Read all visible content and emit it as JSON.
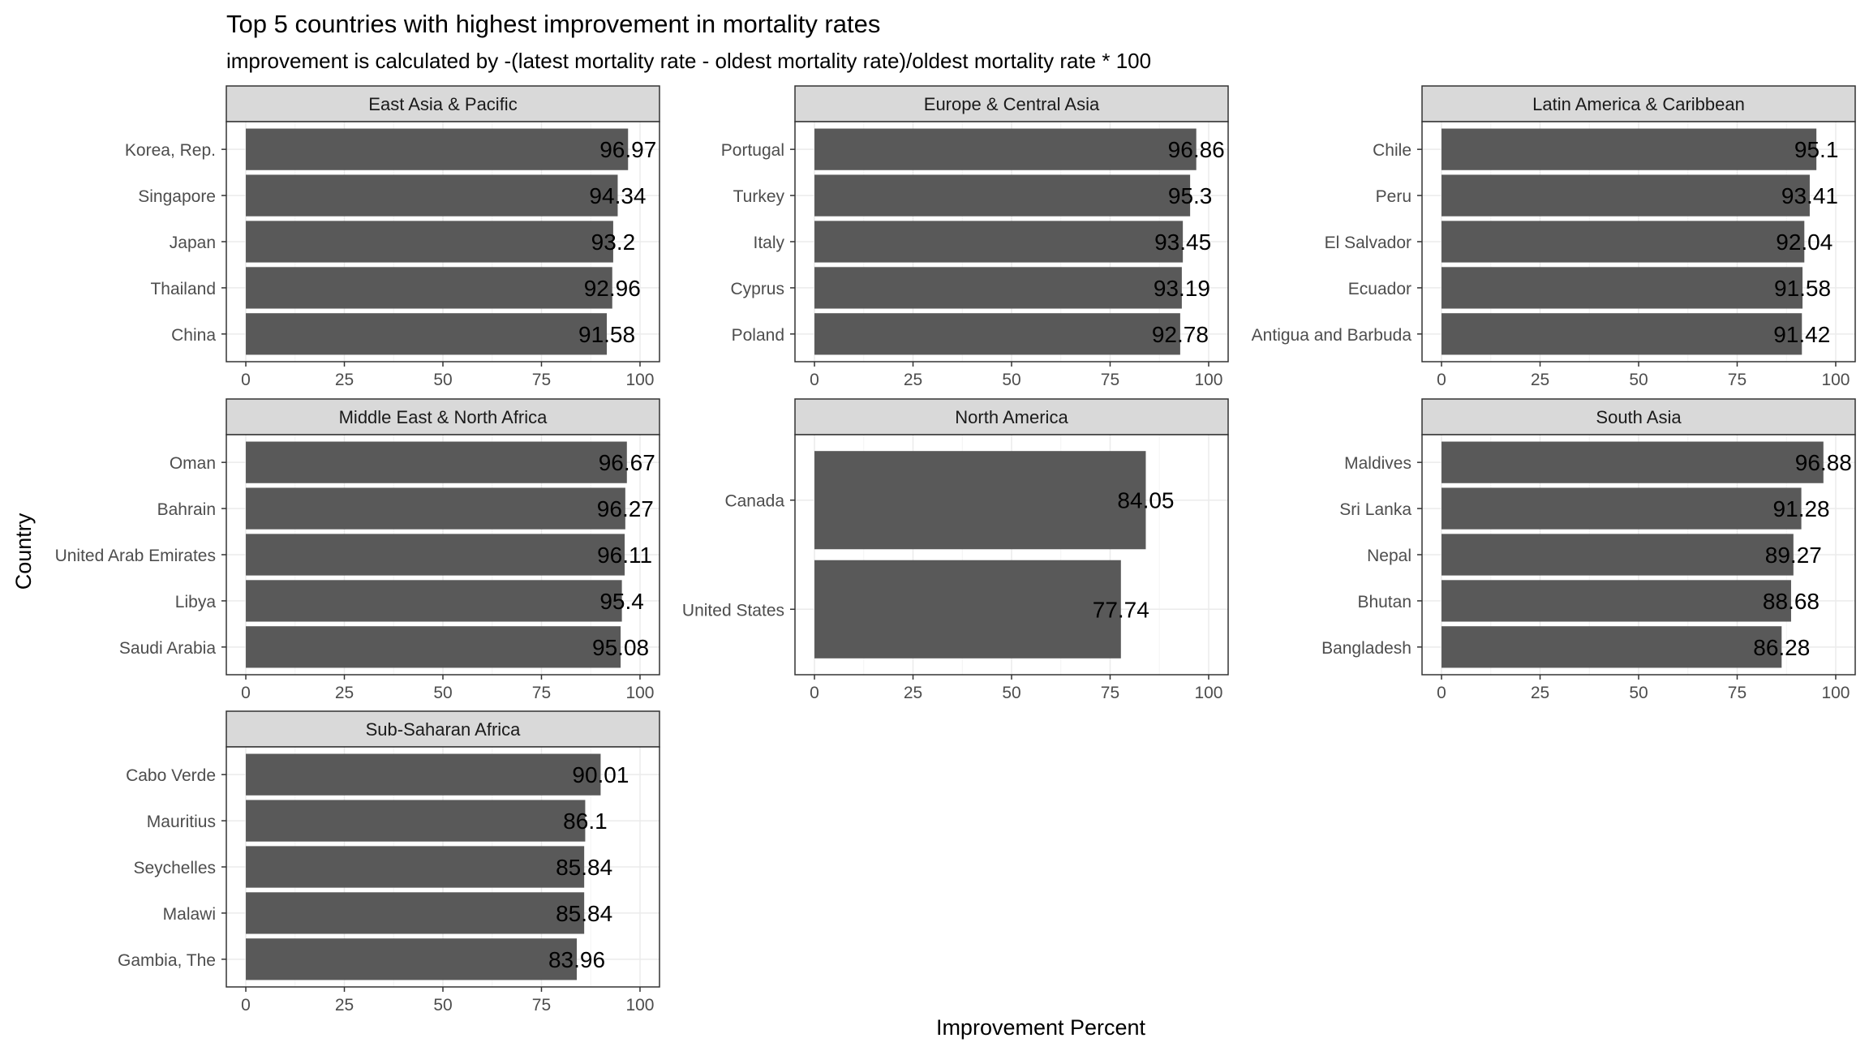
{
  "chart_data": {
    "type": "bar",
    "orientation": "horizontal",
    "title": "Top 5 countries with highest improvement in mortality rates",
    "subtitle": "improvement is calculated by -(latest mortality rate - oldest mortality rate)/oldest mortality rate * 100",
    "xlabel": "Improvement Percent",
    "ylabel": "Country",
    "xlim": [
      0,
      100
    ],
    "xticks": [
      0,
      25,
      50,
      75,
      100
    ],
    "grid": true,
    "bar_color": "#595959",
    "strip_color": "#d9d9d9",
    "facets": [
      {
        "name": "East Asia & Pacific",
        "categories": [
          "Korea, Rep.",
          "Singapore",
          "Japan",
          "Thailand",
          "China"
        ],
        "values": [
          96.97,
          94.34,
          93.2,
          92.96,
          91.58
        ],
        "labels": [
          "96.97",
          "94.34",
          "93.2",
          "92.96",
          "91.58"
        ]
      },
      {
        "name": "Europe & Central Asia",
        "categories": [
          "Portugal",
          "Turkey",
          "Italy",
          "Cyprus",
          "Poland"
        ],
        "values": [
          96.86,
          95.3,
          93.45,
          93.19,
          92.78
        ],
        "labels": [
          "96.86",
          "95.3",
          "93.45",
          "93.19",
          "92.78"
        ]
      },
      {
        "name": "Latin America & Caribbean",
        "categories": [
          "Chile",
          "Peru",
          "El Salvador",
          "Ecuador",
          "Antigua and Barbuda"
        ],
        "values": [
          95.1,
          93.41,
          92.04,
          91.58,
          91.42
        ],
        "labels": [
          "95.1",
          "93.41",
          "92.04",
          "91.58",
          "91.42"
        ]
      },
      {
        "name": "Middle East & North Africa",
        "categories": [
          "Oman",
          "Bahrain",
          "United Arab Emirates",
          "Libya",
          "Saudi Arabia"
        ],
        "values": [
          96.67,
          96.27,
          96.11,
          95.4,
          95.08
        ],
        "labels": [
          "96.67",
          "96.27",
          "96.11",
          "95.4",
          "95.08"
        ]
      },
      {
        "name": "North America",
        "categories": [
          "Canada",
          "United States"
        ],
        "values": [
          84.05,
          77.74
        ],
        "labels": [
          "84.05",
          "77.74"
        ]
      },
      {
        "name": "South Asia",
        "categories": [
          "Maldives",
          "Sri Lanka",
          "Nepal",
          "Bhutan",
          "Bangladesh"
        ],
        "values": [
          96.88,
          91.28,
          89.27,
          88.68,
          86.28
        ],
        "labels": [
          "96.88",
          "91.28",
          "89.27",
          "88.68",
          "86.28"
        ]
      },
      {
        "name": "Sub-Saharan Africa",
        "categories": [
          "Cabo Verde",
          "Mauritius",
          "Seychelles",
          "Malawi",
          "Gambia, The"
        ],
        "values": [
          90.01,
          86.1,
          85.84,
          85.84,
          83.96
        ],
        "labels": [
          "90.01",
          "86.1",
          "85.84",
          "85.84",
          "83.96"
        ]
      }
    ]
  }
}
